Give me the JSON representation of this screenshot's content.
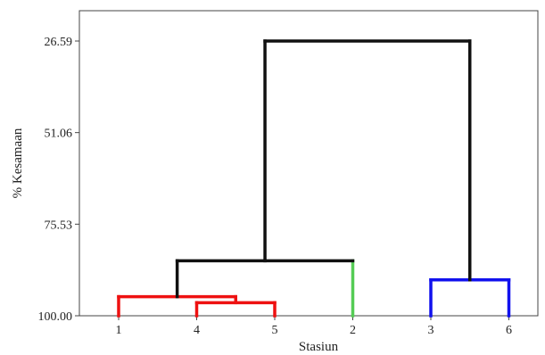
{
  "chart_data": {
    "type": "dendrogram",
    "title": "",
    "xlabel": "Stasiun",
    "ylabel": "% Kesamaan",
    "ylim": [
      100.0,
      20.0
    ],
    "yticks": [
      100.0,
      75.53,
      51.06,
      26.59
    ],
    "ytick_labels": [
      "100.00",
      "75.53",
      "51.06",
      "26.59"
    ],
    "leaf_order": [
      "1",
      "4",
      "5",
      "2",
      "3",
      "6"
    ],
    "merges": [
      {
        "id": "c45",
        "left": "4",
        "right": "5",
        "similarity": 96.5,
        "color": "#ee1111"
      },
      {
        "id": "c145",
        "left": "1",
        "right": "c45",
        "similarity": 94.9,
        "color": "#ee1111"
      },
      {
        "id": "c1452",
        "left": "c145",
        "right": "2",
        "similarity": 85.3,
        "color": "#111111"
      },
      {
        "id": "c36",
        "left": "3",
        "right": "6",
        "similarity": 90.4,
        "color": "#1111ee"
      },
      {
        "id": "root",
        "left": "c1452",
        "right": "c36",
        "similarity": 26.59,
        "color": "#111111"
      }
    ],
    "leaf_colors": {
      "1": "#ee1111",
      "4": "#ee1111",
      "5": "#ee1111",
      "2": "#55cc55",
      "3": "#1111ee",
      "6": "#1111ee"
    },
    "grid": false
  }
}
